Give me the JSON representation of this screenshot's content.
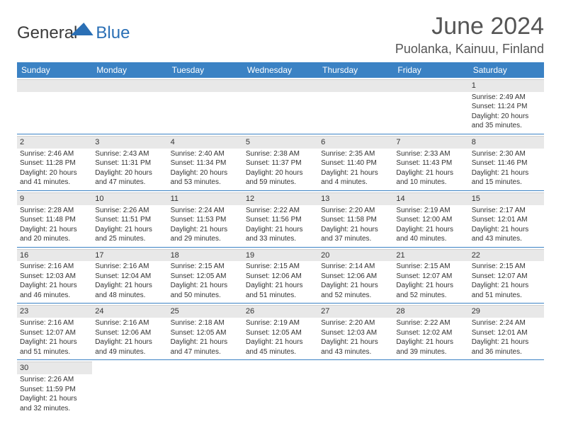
{
  "brand": {
    "part1": "General",
    "part2": "Blue"
  },
  "title": "June 2024",
  "location": "Puolanka, Kainuu, Finland",
  "weekdays": [
    "Sunday",
    "Monday",
    "Tuesday",
    "Wednesday",
    "Thursday",
    "Friday",
    "Saturday"
  ],
  "style": {
    "header_bg": "#3b82c4",
    "header_text": "#ffffff",
    "daynum_bg": "#e8e8e8",
    "divider": "#3b82c4",
    "body_text": "#333333",
    "title_color": "#555555",
    "cell_fontsize": 10,
    "header_fontsize": 12,
    "title_fontsize": 34,
    "location_fontsize": 18
  },
  "weeks": [
    [
      null,
      null,
      null,
      null,
      null,
      null,
      {
        "day": "1",
        "sunrise": "Sunrise: 2:49 AM",
        "sunset": "Sunset: 11:24 PM",
        "daylight1": "Daylight: 20 hours",
        "daylight2": "and 35 minutes."
      }
    ],
    [
      {
        "day": "2",
        "sunrise": "Sunrise: 2:46 AM",
        "sunset": "Sunset: 11:28 PM",
        "daylight1": "Daylight: 20 hours",
        "daylight2": "and 41 minutes."
      },
      {
        "day": "3",
        "sunrise": "Sunrise: 2:43 AM",
        "sunset": "Sunset: 11:31 PM",
        "daylight1": "Daylight: 20 hours",
        "daylight2": "and 47 minutes."
      },
      {
        "day": "4",
        "sunrise": "Sunrise: 2:40 AM",
        "sunset": "Sunset: 11:34 PM",
        "daylight1": "Daylight: 20 hours",
        "daylight2": "and 53 minutes."
      },
      {
        "day": "5",
        "sunrise": "Sunrise: 2:38 AM",
        "sunset": "Sunset: 11:37 PM",
        "daylight1": "Daylight: 20 hours",
        "daylight2": "and 59 minutes."
      },
      {
        "day": "6",
        "sunrise": "Sunrise: 2:35 AM",
        "sunset": "Sunset: 11:40 PM",
        "daylight1": "Daylight: 21 hours",
        "daylight2": "and 4 minutes."
      },
      {
        "day": "7",
        "sunrise": "Sunrise: 2:33 AM",
        "sunset": "Sunset: 11:43 PM",
        "daylight1": "Daylight: 21 hours",
        "daylight2": "and 10 minutes."
      },
      {
        "day": "8",
        "sunrise": "Sunrise: 2:30 AM",
        "sunset": "Sunset: 11:46 PM",
        "daylight1": "Daylight: 21 hours",
        "daylight2": "and 15 minutes."
      }
    ],
    [
      {
        "day": "9",
        "sunrise": "Sunrise: 2:28 AM",
        "sunset": "Sunset: 11:48 PM",
        "daylight1": "Daylight: 21 hours",
        "daylight2": "and 20 minutes."
      },
      {
        "day": "10",
        "sunrise": "Sunrise: 2:26 AM",
        "sunset": "Sunset: 11:51 PM",
        "daylight1": "Daylight: 21 hours",
        "daylight2": "and 25 minutes."
      },
      {
        "day": "11",
        "sunrise": "Sunrise: 2:24 AM",
        "sunset": "Sunset: 11:53 PM",
        "daylight1": "Daylight: 21 hours",
        "daylight2": "and 29 minutes."
      },
      {
        "day": "12",
        "sunrise": "Sunrise: 2:22 AM",
        "sunset": "Sunset: 11:56 PM",
        "daylight1": "Daylight: 21 hours",
        "daylight2": "and 33 minutes."
      },
      {
        "day": "13",
        "sunrise": "Sunrise: 2:20 AM",
        "sunset": "Sunset: 11:58 PM",
        "daylight1": "Daylight: 21 hours",
        "daylight2": "and 37 minutes."
      },
      {
        "day": "14",
        "sunrise": "Sunrise: 2:19 AM",
        "sunset": "Sunset: 12:00 AM",
        "daylight1": "Daylight: 21 hours",
        "daylight2": "and 40 minutes."
      },
      {
        "day": "15",
        "sunrise": "Sunrise: 2:17 AM",
        "sunset": "Sunset: 12:01 AM",
        "daylight1": "Daylight: 21 hours",
        "daylight2": "and 43 minutes."
      }
    ],
    [
      {
        "day": "16",
        "sunrise": "Sunrise: 2:16 AM",
        "sunset": "Sunset: 12:03 AM",
        "daylight1": "Daylight: 21 hours",
        "daylight2": "and 46 minutes."
      },
      {
        "day": "17",
        "sunrise": "Sunrise: 2:16 AM",
        "sunset": "Sunset: 12:04 AM",
        "daylight1": "Daylight: 21 hours",
        "daylight2": "and 48 minutes."
      },
      {
        "day": "18",
        "sunrise": "Sunrise: 2:15 AM",
        "sunset": "Sunset: 12:05 AM",
        "daylight1": "Daylight: 21 hours",
        "daylight2": "and 50 minutes."
      },
      {
        "day": "19",
        "sunrise": "Sunrise: 2:15 AM",
        "sunset": "Sunset: 12:06 AM",
        "daylight1": "Daylight: 21 hours",
        "daylight2": "and 51 minutes."
      },
      {
        "day": "20",
        "sunrise": "Sunrise: 2:14 AM",
        "sunset": "Sunset: 12:06 AM",
        "daylight1": "Daylight: 21 hours",
        "daylight2": "and 52 minutes."
      },
      {
        "day": "21",
        "sunrise": "Sunrise: 2:15 AM",
        "sunset": "Sunset: 12:07 AM",
        "daylight1": "Daylight: 21 hours",
        "daylight2": "and 52 minutes."
      },
      {
        "day": "22",
        "sunrise": "Sunrise: 2:15 AM",
        "sunset": "Sunset: 12:07 AM",
        "daylight1": "Daylight: 21 hours",
        "daylight2": "and 51 minutes."
      }
    ],
    [
      {
        "day": "23",
        "sunrise": "Sunrise: 2:16 AM",
        "sunset": "Sunset: 12:07 AM",
        "daylight1": "Daylight: 21 hours",
        "daylight2": "and 51 minutes."
      },
      {
        "day": "24",
        "sunrise": "Sunrise: 2:16 AM",
        "sunset": "Sunset: 12:06 AM",
        "daylight1": "Daylight: 21 hours",
        "daylight2": "and 49 minutes."
      },
      {
        "day": "25",
        "sunrise": "Sunrise: 2:18 AM",
        "sunset": "Sunset: 12:05 AM",
        "daylight1": "Daylight: 21 hours",
        "daylight2": "and 47 minutes."
      },
      {
        "day": "26",
        "sunrise": "Sunrise: 2:19 AM",
        "sunset": "Sunset: 12:05 AM",
        "daylight1": "Daylight: 21 hours",
        "daylight2": "and 45 minutes."
      },
      {
        "day": "27",
        "sunrise": "Sunrise: 2:20 AM",
        "sunset": "Sunset: 12:03 AM",
        "daylight1": "Daylight: 21 hours",
        "daylight2": "and 43 minutes."
      },
      {
        "day": "28",
        "sunrise": "Sunrise: 2:22 AM",
        "sunset": "Sunset: 12:02 AM",
        "daylight1": "Daylight: 21 hours",
        "daylight2": "and 39 minutes."
      },
      {
        "day": "29",
        "sunrise": "Sunrise: 2:24 AM",
        "sunset": "Sunset: 12:01 AM",
        "daylight1": "Daylight: 21 hours",
        "daylight2": "and 36 minutes."
      }
    ],
    [
      {
        "day": "30",
        "sunrise": "Sunrise: 2:26 AM",
        "sunset": "Sunset: 11:59 PM",
        "daylight1": "Daylight: 21 hours",
        "daylight2": "and 32 minutes."
      },
      null,
      null,
      null,
      null,
      null,
      null
    ]
  ]
}
